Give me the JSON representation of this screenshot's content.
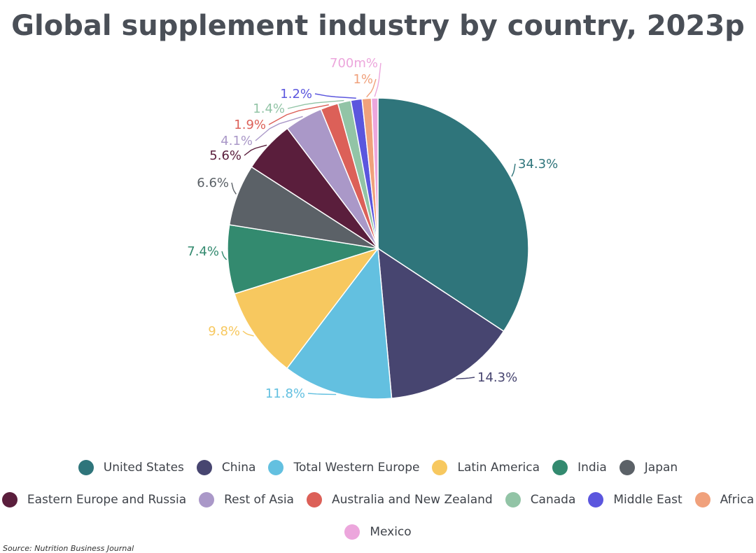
{
  "chart_data": {
    "type": "pie",
    "title": "Global supplement industry by country, 2023p",
    "series": [
      {
        "name": "United States",
        "value": 34.3,
        "label": "34.3%",
        "color": "#2f757b"
      },
      {
        "name": "China",
        "value": 14.3,
        "label": "14.3%",
        "color": "#474570"
      },
      {
        "name": "Total Western Europe",
        "value": 11.8,
        "label": "11.8%",
        "color": "#63c0e0"
      },
      {
        "name": "Latin America",
        "value": 9.8,
        "label": "9.8%",
        "color": "#f7c85f"
      },
      {
        "name": "India",
        "value": 7.4,
        "label": "7.4%",
        "color": "#338a6f"
      },
      {
        "name": "Japan",
        "value": 6.6,
        "label": "6.6%",
        "color": "#5b6167"
      },
      {
        "name": "Eastern Europe and Russia",
        "value": 5.6,
        "label": "5.6%",
        "color": "#5a1e3c"
      },
      {
        "name": "Rest of Asia",
        "value": 4.1,
        "label": "4.1%",
        "color": "#aa98c8"
      },
      {
        "name": "Australia and New Zealand",
        "value": 1.9,
        "label": "1.9%",
        "color": "#dc6058"
      },
      {
        "name": "Canada",
        "value": 1.4,
        "label": "1.4%",
        "color": "#92c4a6"
      },
      {
        "name": "Middle East",
        "value": 1.2,
        "label": "1.2%",
        "color": "#5b56de"
      },
      {
        "name": "Africa",
        "value": 1.0,
        "label": "1%",
        "color": "#f0a17c"
      },
      {
        "name": "Mexico",
        "value": 0.7,
        "label": "700m%",
        "color": "#eca6dc"
      }
    ],
    "legend_placement": "bottom"
  },
  "source": "Source: Nutrition Business Journal"
}
